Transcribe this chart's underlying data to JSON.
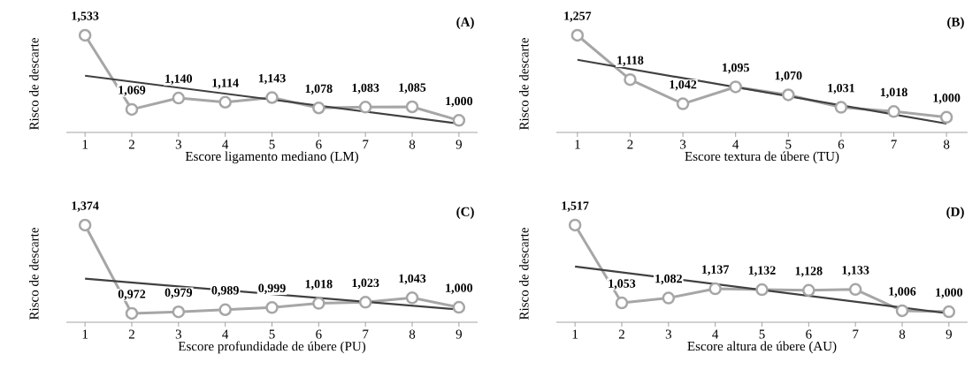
{
  "chart_data": [
    {
      "type": "line",
      "xlabel": "Escore ligamento mediano (LM)",
      "ylabel": "Risco de descarte",
      "annotations": [
        "(A)"
      ],
      "x": [
        1,
        2,
        3,
        4,
        5,
        6,
        7,
        8,
        9
      ],
      "xlim": [
        0.6,
        9.4
      ],
      "xticks": [
        1,
        2,
        3,
        4,
        5,
        6,
        7,
        8,
        9
      ],
      "tick_labels": "x",
      "series": [
        {
          "color": "#a6a6a6",
          "marker": "circle",
          "values": [
            1.533,
            1.069,
            1.14,
            1.114,
            1.143,
            1.078,
            1.083,
            1.085,
            1.0
          ],
          "value_labels": [
            "1,533",
            "1,069",
            "1,140",
            "1,114",
            "1,143",
            "1,078",
            "1,083",
            "1,085",
            "1,000"
          ]
        },
        {
          "color": "#404040",
          "marker": "none",
          "x": [
            1,
            9
          ],
          "values": [
            1.28,
            0.98
          ]
        }
      ]
    },
    {
      "type": "line",
      "xlabel": "Escore textura de úbere (TU)",
      "ylabel": "Risco de descarte",
      "annotations": [
        "(B)"
      ],
      "x": [
        1,
        2,
        3,
        4,
        5,
        6,
        7,
        8
      ],
      "xlim": [
        0.6,
        8.4
      ],
      "xticks": [
        1,
        2,
        3,
        4,
        5,
        6,
        7,
        8
      ],
      "tick_labels": "x",
      "series": [
        {
          "color": "#a6a6a6",
          "marker": "circle",
          "values": [
            1.257,
            1.118,
            1.042,
            1.095,
            1.07,
            1.031,
            1.018,
            1.0
          ],
          "value_labels": [
            "1,257",
            "1,118",
            "1,042",
            "1,095",
            "1,070",
            "1,031",
            "1,018",
            "1,000"
          ]
        },
        {
          "color": "#404040",
          "marker": "none",
          "x": [
            1,
            8
          ],
          "values": [
            1.18,
            0.98
          ]
        }
      ]
    },
    {
      "type": "line",
      "xlabel": "Escore profundidade de úbere (PU)",
      "ylabel": "Risco de descarte",
      "annotations": [
        "(C)"
      ],
      "x": [
        1,
        2,
        3,
        4,
        5,
        6,
        7,
        8,
        9
      ],
      "xlim": [
        0.6,
        9.4
      ],
      "xticks": [
        1,
        2,
        3,
        4,
        5,
        6,
        7,
        8,
        9
      ],
      "tick_labels": "x",
      "series": [
        {
          "color": "#a6a6a6",
          "marker": "circle",
          "values": [
            1.374,
            0.972,
            0.979,
            0.989,
            0.999,
            1.018,
            1.023,
            1.043,
            1.0
          ],
          "value_labels": [
            "1,374",
            "0,972",
            "0,979",
            "0,989",
            "0,999",
            "1,018",
            "1,023",
            "1,043",
            "1,000"
          ]
        },
        {
          "color": "#404040",
          "marker": "none",
          "x": [
            1,
            9
          ],
          "values": [
            1.13,
            0.99
          ]
        }
      ]
    },
    {
      "type": "line",
      "xlabel": "Escore altura de úbere (AU)",
      "ylabel": "Risco de descarte",
      "annotations": [
        "(D)"
      ],
      "x": [
        1,
        2,
        3,
        4,
        5,
        6,
        7,
        8,
        9
      ],
      "xlim": [
        0.6,
        9.4
      ],
      "xticks": [
        1,
        2,
        3,
        4,
        5,
        6,
        7,
        8,
        9
      ],
      "tick_labels": "x",
      "series": [
        {
          "color": "#a6a6a6",
          "marker": "circle",
          "values": [
            1.517,
            1.053,
            1.082,
            1.137,
            1.132,
            1.128,
            1.133,
            1.006,
            1.0
          ],
          "value_labels": [
            "1,517",
            "1,053",
            "1,082",
            "1,137",
            "1,132",
            "1,128",
            "1,133",
            "1,006",
            "1,000"
          ]
        },
        {
          "color": "#404040",
          "marker": "none",
          "x": [
            1,
            9
          ],
          "values": [
            1.27,
            0.99
          ]
        }
      ]
    }
  ]
}
